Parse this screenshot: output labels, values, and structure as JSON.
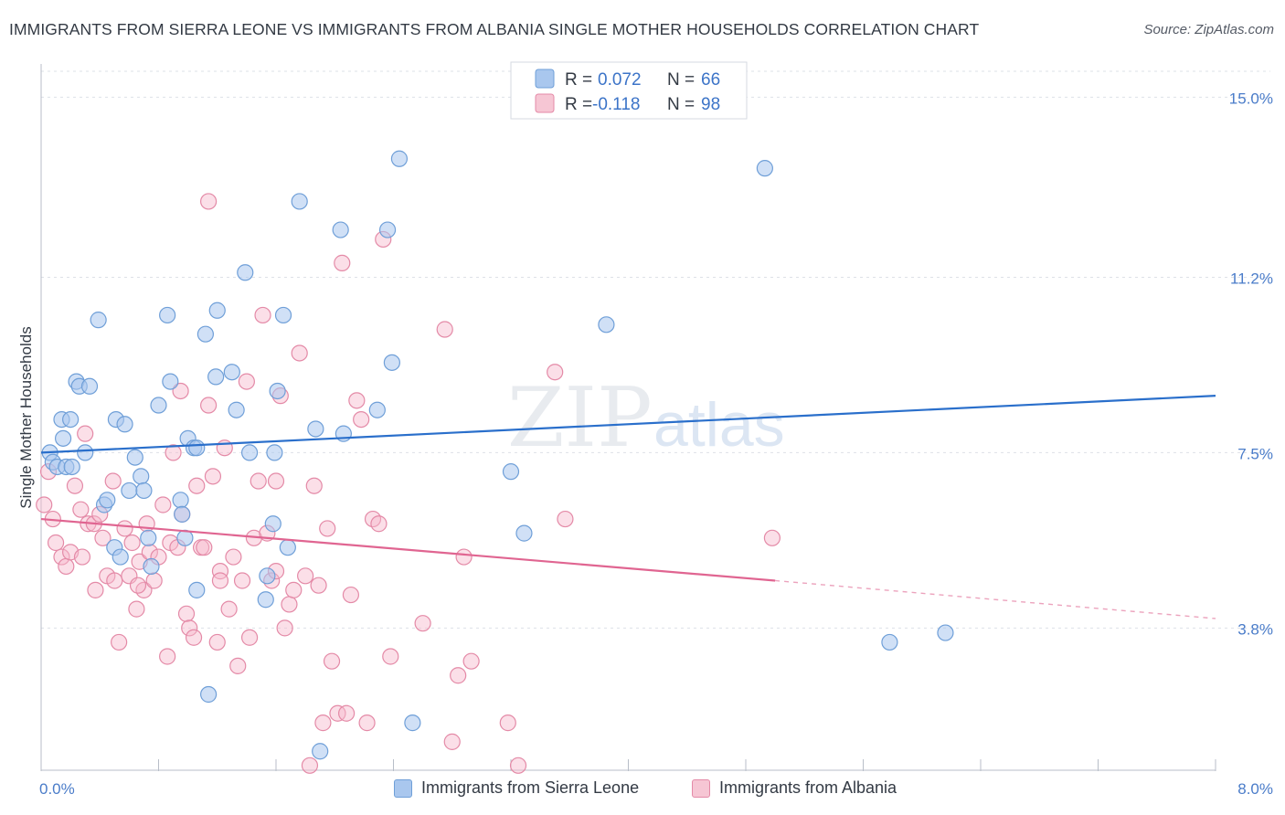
{
  "title": "IMMIGRANTS FROM SIERRA LEONE VS IMMIGRANTS FROM ALBANIA SINGLE MOTHER HOUSEHOLDS CORRELATION CHART",
  "source": "Source: ZipAtlas.com",
  "watermark": {
    "zip": "ZIP",
    "atlas": "atlas"
  },
  "colors": {
    "blue_fill": "#a9c7ee",
    "blue_stroke": "#6f9fd8",
    "blue_line": "#2a6fcb",
    "pink_fill": "#f6b9cb",
    "pink_stroke": "#e48aa7",
    "pink_line": "#e06591",
    "tick_text": "#4a7cc9",
    "grid": "#dde1e7"
  },
  "legend": {
    "rows": [
      {
        "r_label": "R =",
        "r_value": "0.072",
        "n_label": "N =",
        "n_value": "66"
      },
      {
        "r_label": "R =",
        "r_value": "-0.118",
        "n_label": "N =",
        "n_value": "98"
      }
    ]
  },
  "chart_data": {
    "type": "scatter",
    "ylabel": "Single Mother Households",
    "xlim": [
      0,
      8
    ],
    "ylim": [
      0.8,
      15.7
    ],
    "x_tick_labels": [
      {
        "value": 0,
        "label": "0.0%"
      },
      {
        "value": 8,
        "label": "8.0%"
      }
    ],
    "y_tick_labels": [
      {
        "value": 3.8,
        "label": "3.8%"
      },
      {
        "value": 7.5,
        "label": "7.5%"
      },
      {
        "value": 11.2,
        "label": "11.2%"
      },
      {
        "value": 15.0,
        "label": "15.0%"
      }
    ],
    "grid": true,
    "legend_placement": "top-center",
    "series": [
      {
        "name": "Immigrants from Sierra Leone",
        "color": "blue",
        "r": 0.072,
        "n": 66,
        "trend": {
          "x0": 0.0,
          "y0": 7.5,
          "x1": 8.0,
          "y1": 8.7
        },
        "points": [
          [
            0.06,
            7.5
          ],
          [
            0.08,
            7.3
          ],
          [
            0.11,
            7.2
          ],
          [
            0.14,
            8.2
          ],
          [
            0.17,
            7.2
          ],
          [
            0.21,
            7.2
          ],
          [
            0.24,
            9.0
          ],
          [
            0.26,
            8.9
          ],
          [
            0.3,
            7.5
          ],
          [
            0.33,
            8.9
          ],
          [
            0.39,
            10.3
          ],
          [
            0.43,
            6.4
          ],
          [
            0.45,
            6.5
          ],
          [
            0.5,
            5.5
          ],
          [
            0.51,
            8.2
          ],
          [
            0.54,
            5.3
          ],
          [
            0.57,
            8.1
          ],
          [
            0.6,
            6.7
          ],
          [
            0.64,
            7.4
          ],
          [
            0.68,
            7.0
          ],
          [
            0.7,
            6.7
          ],
          [
            0.73,
            5.7
          ],
          [
            0.75,
            5.1
          ],
          [
            0.8,
            8.5
          ],
          [
            0.86,
            10.4
          ],
          [
            0.88,
            9.0
          ],
          [
            0.95,
            6.5
          ],
          [
            0.96,
            6.2
          ],
          [
            0.98,
            5.7
          ],
          [
            1.0,
            7.8
          ],
          [
            1.04,
            7.6
          ],
          [
            1.06,
            7.6
          ],
          [
            1.06,
            4.6
          ],
          [
            1.12,
            10.0
          ],
          [
            1.14,
            2.4
          ],
          [
            1.19,
            9.1
          ],
          [
            1.2,
            10.5
          ],
          [
            1.3,
            9.2
          ],
          [
            1.33,
            8.4
          ],
          [
            1.39,
            11.3
          ],
          [
            1.42,
            7.5
          ],
          [
            1.53,
            4.4
          ],
          [
            1.54,
            4.9
          ],
          [
            1.58,
            6.0
          ],
          [
            1.59,
            7.5
          ],
          [
            1.61,
            8.8
          ],
          [
            1.65,
            10.4
          ],
          [
            1.68,
            5.5
          ],
          [
            1.76,
            12.8
          ],
          [
            1.87,
            8.0
          ],
          [
            1.9,
            1.2
          ],
          [
            2.04,
            12.2
          ],
          [
            2.06,
            7.9
          ],
          [
            2.29,
            8.4
          ],
          [
            2.36,
            12.2
          ],
          [
            2.39,
            9.4
          ],
          [
            2.44,
            13.7
          ],
          [
            2.53,
            1.8
          ],
          [
            3.2,
            7.1
          ],
          [
            3.29,
            5.8
          ],
          [
            3.85,
            10.2
          ],
          [
            4.93,
            13.5
          ],
          [
            5.78,
            3.5
          ],
          [
            6.16,
            3.7
          ],
          [
            0.2,
            8.2
          ],
          [
            0.15,
            7.8
          ]
        ]
      },
      {
        "name": "Immigrants from Albania",
        "color": "pink",
        "r": -0.118,
        "n": 98,
        "trend": {
          "x0": 0.0,
          "y0": 6.1,
          "x1": 5.0,
          "y1": 4.8,
          "dashed_to_x": 8.0,
          "dashed_to_y": 4.0
        },
        "points": [
          [
            0.02,
            6.4
          ],
          [
            0.05,
            7.1
          ],
          [
            0.08,
            6.1
          ],
          [
            0.1,
            5.6
          ],
          [
            0.14,
            5.3
          ],
          [
            0.17,
            5.1
          ],
          [
            0.2,
            5.4
          ],
          [
            0.23,
            6.8
          ],
          [
            0.27,
            6.3
          ],
          [
            0.3,
            7.9
          ],
          [
            0.32,
            6.0
          ],
          [
            0.36,
            6.0
          ],
          [
            0.37,
            4.6
          ],
          [
            0.4,
            6.2
          ],
          [
            0.42,
            5.7
          ],
          [
            0.45,
            4.9
          ],
          [
            0.49,
            6.9
          ],
          [
            0.5,
            4.8
          ],
          [
            0.53,
            3.5
          ],
          [
            0.57,
            5.9
          ],
          [
            0.6,
            4.9
          ],
          [
            0.62,
            5.6
          ],
          [
            0.65,
            4.2
          ],
          [
            0.67,
            5.2
          ],
          [
            0.7,
            4.6
          ],
          [
            0.72,
            6.0
          ],
          [
            0.74,
            5.4
          ],
          [
            0.77,
            4.8
          ],
          [
            0.8,
            5.3
          ],
          [
            0.83,
            6.4
          ],
          [
            0.86,
            3.2
          ],
          [
            0.88,
            5.6
          ],
          [
            0.9,
            7.5
          ],
          [
            0.93,
            5.5
          ],
          [
            0.96,
            6.2
          ],
          [
            0.99,
            4.1
          ],
          [
            1.01,
            3.8
          ],
          [
            1.04,
            3.6
          ],
          [
            1.06,
            6.8
          ],
          [
            1.09,
            5.5
          ],
          [
            1.11,
            5.5
          ],
          [
            1.14,
            8.5
          ],
          [
            1.17,
            7.0
          ],
          [
            1.2,
            3.5
          ],
          [
            1.22,
            5.0
          ],
          [
            1.25,
            7.6
          ],
          [
            1.28,
            4.2
          ],
          [
            1.31,
            5.3
          ],
          [
            1.34,
            3.0
          ],
          [
            1.37,
            4.8
          ],
          [
            1.4,
            9.0
          ],
          [
            1.42,
            3.6
          ],
          [
            1.45,
            5.7
          ],
          [
            1.48,
            6.9
          ],
          [
            1.51,
            10.4
          ],
          [
            1.54,
            5.8
          ],
          [
            1.57,
            4.8
          ],
          [
            1.6,
            5.0
          ],
          [
            1.63,
            8.7
          ],
          [
            1.66,
            3.8
          ],
          [
            1.69,
            4.3
          ],
          [
            1.72,
            4.6
          ],
          [
            1.76,
            9.6
          ],
          [
            1.8,
            4.9
          ],
          [
            1.83,
            0.9
          ],
          [
            1.86,
            6.8
          ],
          [
            1.89,
            4.7
          ],
          [
            1.92,
            1.8
          ],
          [
            1.95,
            5.9
          ],
          [
            1.98,
            3.1
          ],
          [
            2.02,
            2.0
          ],
          [
            2.05,
            11.5
          ],
          [
            2.08,
            2.0
          ],
          [
            2.11,
            4.5
          ],
          [
            2.15,
            8.6
          ],
          [
            2.18,
            8.2
          ],
          [
            2.22,
            1.8
          ],
          [
            2.26,
            6.1
          ],
          [
            2.3,
            6.0
          ],
          [
            2.33,
            12.0
          ],
          [
            2.38,
            3.2
          ],
          [
            2.6,
            3.9
          ],
          [
            2.75,
            10.1
          ],
          [
            2.8,
            1.4
          ],
          [
            2.84,
            2.8
          ],
          [
            2.88,
            5.3
          ],
          [
            2.93,
            3.1
          ],
          [
            3.18,
            1.8
          ],
          [
            3.25,
            0.9
          ],
          [
            3.5,
            9.2
          ],
          [
            3.57,
            6.1
          ],
          [
            4.98,
            5.7
          ],
          [
            1.14,
            12.8
          ],
          [
            0.95,
            8.8
          ],
          [
            0.66,
            4.7
          ],
          [
            1.22,
            4.8
          ],
          [
            1.6,
            6.9
          ],
          [
            0.28,
            5.3
          ]
        ]
      }
    ]
  }
}
